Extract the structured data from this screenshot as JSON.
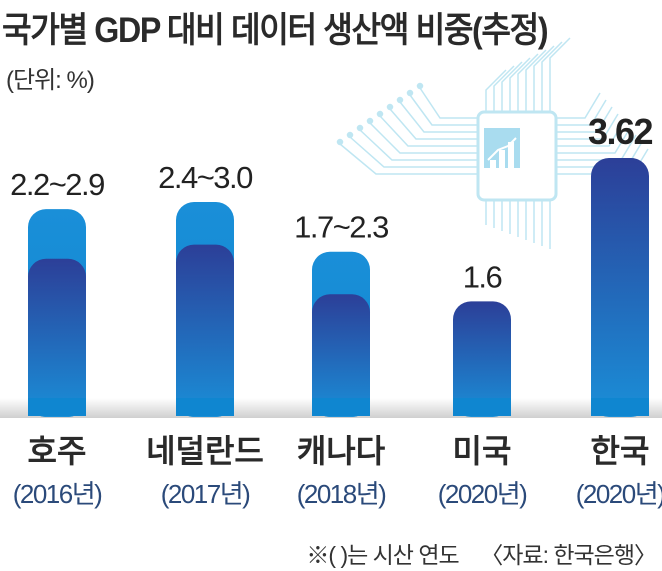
{
  "title": "국가별 GDP 대비 데이터 생산액 비중(추정)",
  "unit": "(단위: %)",
  "note": "※(   )는 시산 연도",
  "source": "〈자료: 한국은행〉",
  "colors": {
    "range_high": "#1a8fd8",
    "range_low": "#2c3f98",
    "year_label": "#2b4a7a"
  },
  "decoration_icon": "circuit-chip-chart-icon",
  "chart_data": {
    "type": "bar",
    "categories": [
      "호주",
      "네덜란드",
      "캐나다",
      "미국",
      "한국"
    ],
    "years": [
      "(2016년)",
      "(2017년)",
      "(2018년)",
      "(2020년)",
      "(2020년)"
    ],
    "low": [
      2.2,
      2.4,
      1.7,
      1.6,
      3.62
    ],
    "high": [
      2.9,
      3.0,
      2.3,
      1.6,
      3.62
    ],
    "labels": [
      "2.2~2.9",
      "2.4~3.0",
      "1.7~2.3",
      "1.6",
      "3.62"
    ],
    "ylim": [
      0,
      3.62
    ],
    "grid": false
  }
}
